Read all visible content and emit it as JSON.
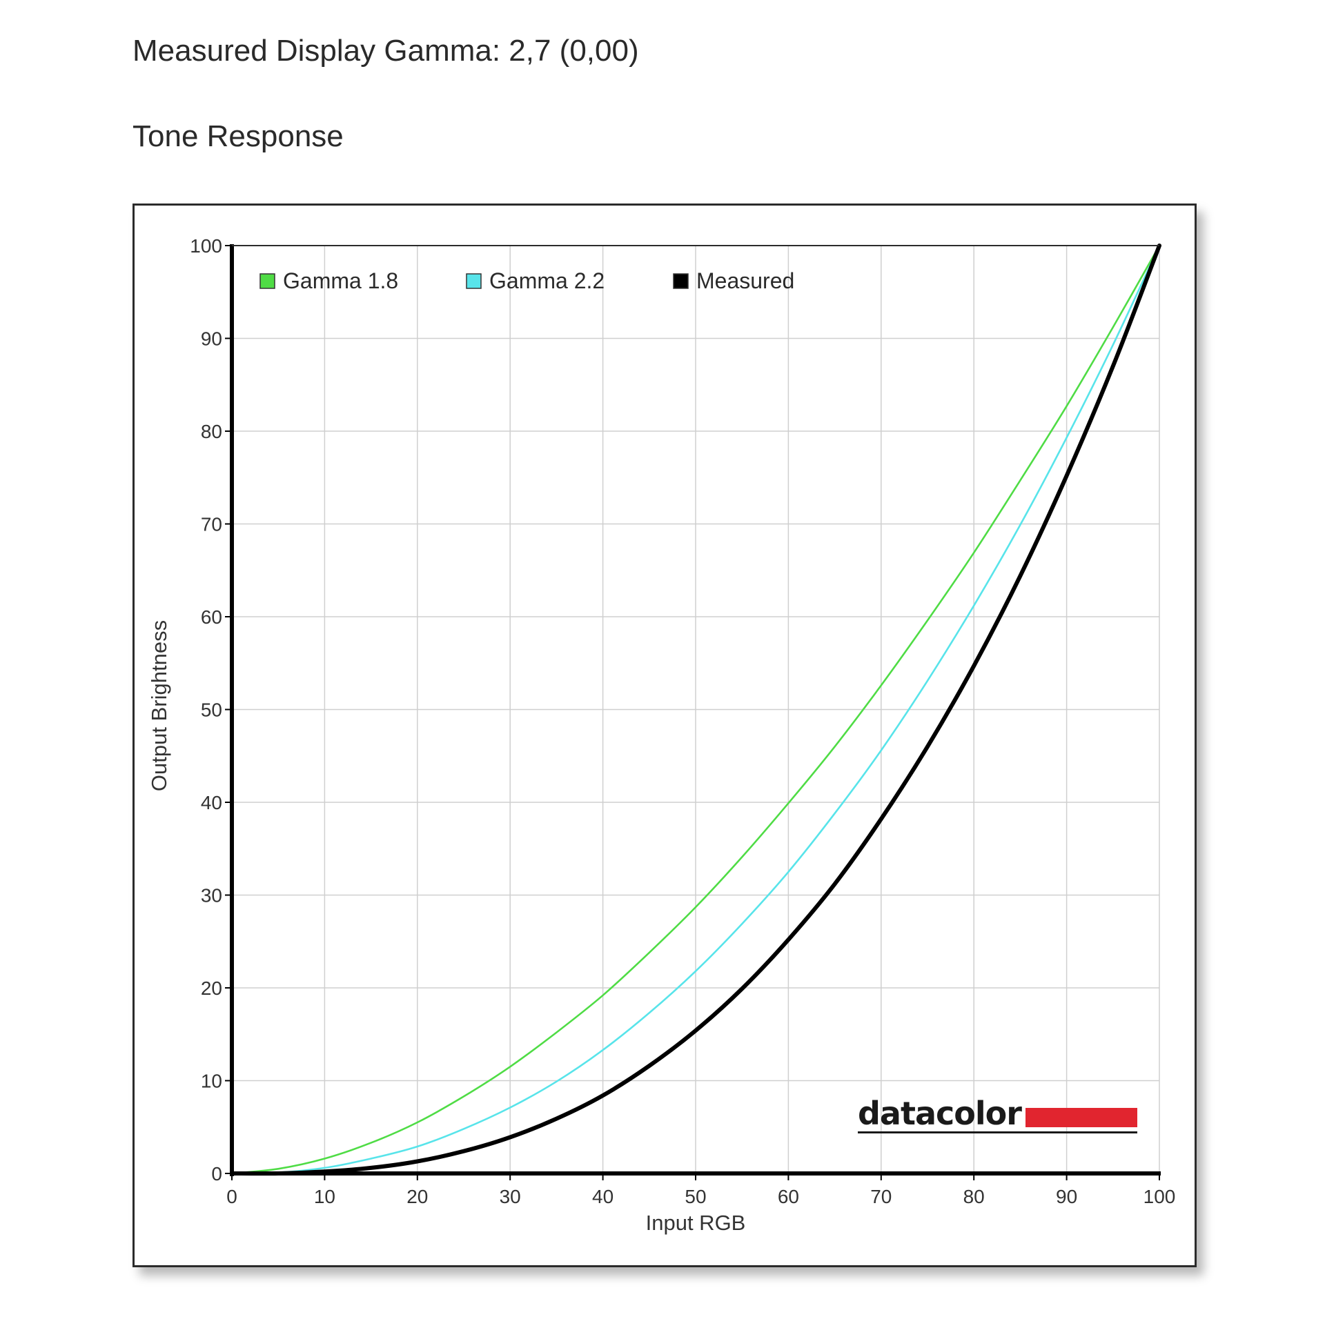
{
  "page": {
    "gamma_heading": "Measured Display Gamma: 2,7 (0,00)",
    "section_heading": "Tone Response"
  },
  "logo": {
    "text": "datacolor",
    "bar_color": "#e1252f"
  },
  "chart_data": {
    "type": "line",
    "xlabel": "Input RGB",
    "ylabel": "Output Brightness",
    "xlim": [
      0,
      100
    ],
    "ylim": [
      0,
      100
    ],
    "xticks": [
      0,
      10,
      20,
      30,
      40,
      50,
      60,
      70,
      80,
      90,
      100
    ],
    "yticks": [
      0,
      10,
      20,
      30,
      40,
      50,
      60,
      70,
      80,
      90,
      100
    ],
    "grid": true,
    "legend_position": "top-left",
    "x": [
      0,
      5,
      10,
      15,
      20,
      25,
      30,
      35,
      40,
      45,
      50,
      55,
      60,
      65,
      70,
      75,
      80,
      85,
      90,
      95,
      100
    ],
    "series": [
      {
        "name": "Gamma 1.8",
        "color": "#4fdc45",
        "values": [
          0,
          0.5,
          1.6,
          3.3,
          5.5,
          8.3,
          11.5,
          15.2,
          19.2,
          23.8,
          28.7,
          34.1,
          39.9,
          46.0,
          52.6,
          59.6,
          66.9,
          74.7,
          82.7,
          91.2,
          100
        ]
      },
      {
        "name": "Gamma 2.2",
        "color": "#58e4ea",
        "values": [
          0,
          0.1,
          0.6,
          1.6,
          2.9,
          4.8,
          7.1,
          9.9,
          13.3,
          17.3,
          21.8,
          26.9,
          32.5,
          38.8,
          45.6,
          53.1,
          61.2,
          69.9,
          79.3,
          89.3,
          100
        ]
      },
      {
        "name": "Measured",
        "color": "#000000",
        "values": [
          0,
          0,
          0.2,
          0.6,
          1.3,
          2.4,
          3.9,
          5.9,
          8.4,
          11.6,
          15.4,
          19.9,
          25.2,
          31.2,
          38.2,
          46.0,
          54.7,
          64.4,
          75.2,
          87.0,
          100
        ]
      }
    ]
  }
}
